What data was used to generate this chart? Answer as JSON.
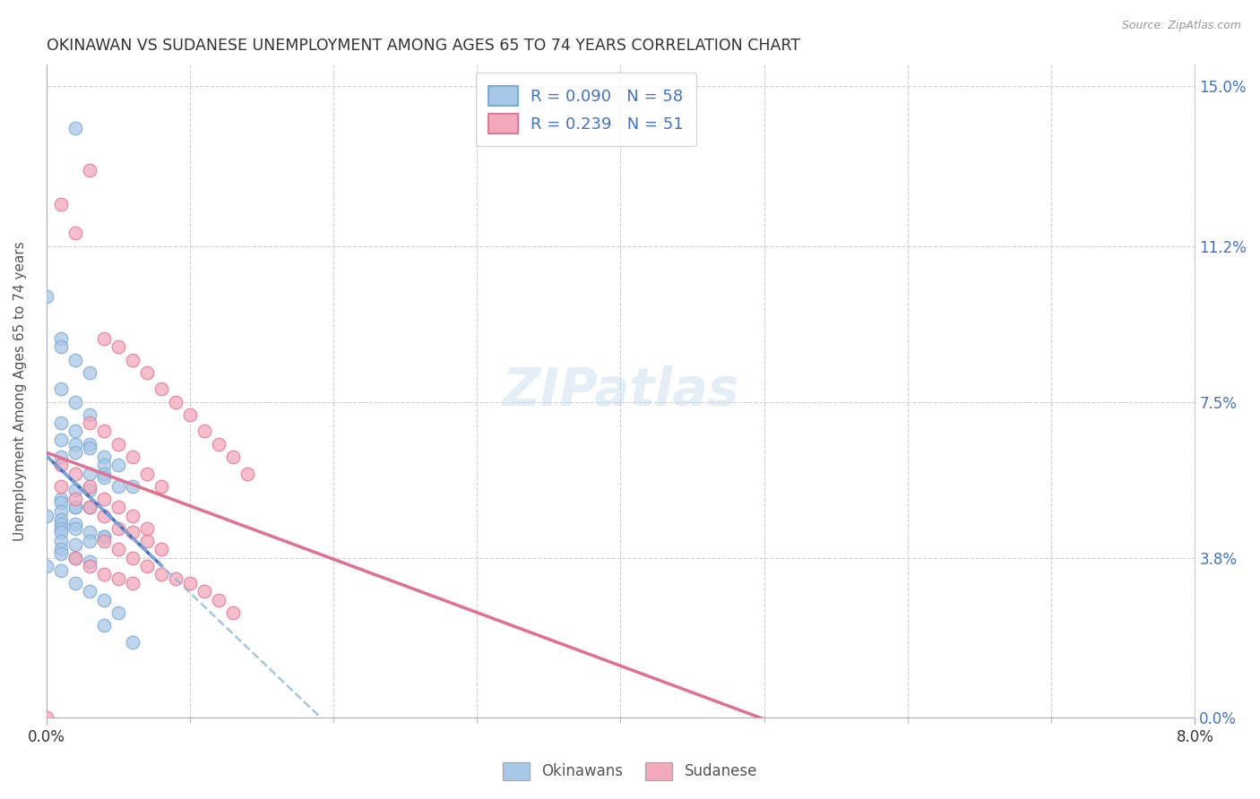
{
  "title": "OKINAWAN VS SUDANESE UNEMPLOYMENT AMONG AGES 65 TO 74 YEARS CORRELATION CHART",
  "source": "Source: ZipAtlas.com",
  "ylabel": "Unemployment Among Ages 65 to 74 years",
  "x_min": 0.0,
  "x_max": 0.08,
  "y_min": 0.0,
  "y_max": 0.155,
  "okinawan_color": "#a8c8e8",
  "okinawan_edge_color": "#7aacd4",
  "sudanese_color": "#f4a8bc",
  "sudanese_edge_color": "#e07898",
  "okinawan_line_color": "#4472c4",
  "sudanese_line_color": "#e07090",
  "okinawan_dash_color": "#90b8d8",
  "okinawan_R": 0.09,
  "okinawan_N": 58,
  "sudanese_R": 0.239,
  "sudanese_N": 51,
  "legend_color": "#4472c4",
  "background_color": "#ffffff",
  "grid_color": "#d0d0d0",
  "y_right_tick_color": "#4472c4",
  "y_tick_vals": [
    0.0,
    0.038,
    0.075,
    0.112,
    0.15
  ],
  "y_tick_labels": [
    "0.0%",
    "3.8%",
    "7.5%",
    "11.2%",
    "15.0%"
  ],
  "okinawan_x": [
    0.002,
    0.0,
    0.001,
    0.001,
    0.002,
    0.003,
    0.001,
    0.002,
    0.003,
    0.001,
    0.002,
    0.001,
    0.002,
    0.003,
    0.003,
    0.002,
    0.001,
    0.004,
    0.004,
    0.005,
    0.004,
    0.003,
    0.004,
    0.005,
    0.006,
    0.003,
    0.002,
    0.001,
    0.001,
    0.002,
    0.003,
    0.002,
    0.001,
    0.0,
    0.001,
    0.001,
    0.002,
    0.001,
    0.002,
    0.001,
    0.003,
    0.004,
    0.004,
    0.003,
    0.001,
    0.002,
    0.001,
    0.001,
    0.002,
    0.003,
    0.0,
    0.001,
    0.002,
    0.003,
    0.004,
    0.005,
    0.004,
    0.006
  ],
  "okinawan_y": [
    0.14,
    0.1,
    0.09,
    0.088,
    0.085,
    0.082,
    0.078,
    0.075,
    0.072,
    0.07,
    0.068,
    0.066,
    0.065,
    0.065,
    0.064,
    0.063,
    0.062,
    0.062,
    0.06,
    0.06,
    0.058,
    0.058,
    0.057,
    0.055,
    0.055,
    0.054,
    0.054,
    0.052,
    0.051,
    0.05,
    0.05,
    0.05,
    0.049,
    0.048,
    0.047,
    0.046,
    0.046,
    0.045,
    0.045,
    0.044,
    0.044,
    0.043,
    0.043,
    0.042,
    0.042,
    0.041,
    0.04,
    0.039,
    0.038,
    0.037,
    0.036,
    0.035,
    0.032,
    0.03,
    0.028,
    0.025,
    0.022,
    0.018
  ],
  "sudanese_x": [
    0.0,
    0.001,
    0.002,
    0.003,
    0.004,
    0.005,
    0.006,
    0.007,
    0.008,
    0.009,
    0.01,
    0.011,
    0.012,
    0.013,
    0.014,
    0.001,
    0.002,
    0.003,
    0.004,
    0.005,
    0.006,
    0.007,
    0.008,
    0.002,
    0.003,
    0.004,
    0.005,
    0.006,
    0.001,
    0.002,
    0.003,
    0.004,
    0.005,
    0.006,
    0.007,
    0.003,
    0.004,
    0.005,
    0.006,
    0.007,
    0.008,
    0.004,
    0.005,
    0.006,
    0.007,
    0.008,
    0.009,
    0.01,
    0.011,
    0.012,
    0.013
  ],
  "sudanese_y": [
    0.0,
    0.122,
    0.115,
    0.13,
    0.09,
    0.088,
    0.085,
    0.082,
    0.078,
    0.075,
    0.072,
    0.068,
    0.065,
    0.062,
    0.058,
    0.055,
    0.052,
    0.05,
    0.048,
    0.045,
    0.044,
    0.042,
    0.04,
    0.038,
    0.036,
    0.034,
    0.033,
    0.032,
    0.06,
    0.058,
    0.055,
    0.052,
    0.05,
    0.048,
    0.045,
    0.07,
    0.068,
    0.065,
    0.062,
    0.058,
    0.055,
    0.042,
    0.04,
    0.038,
    0.036,
    0.034,
    0.033,
    0.032,
    0.03,
    0.028,
    0.025
  ]
}
